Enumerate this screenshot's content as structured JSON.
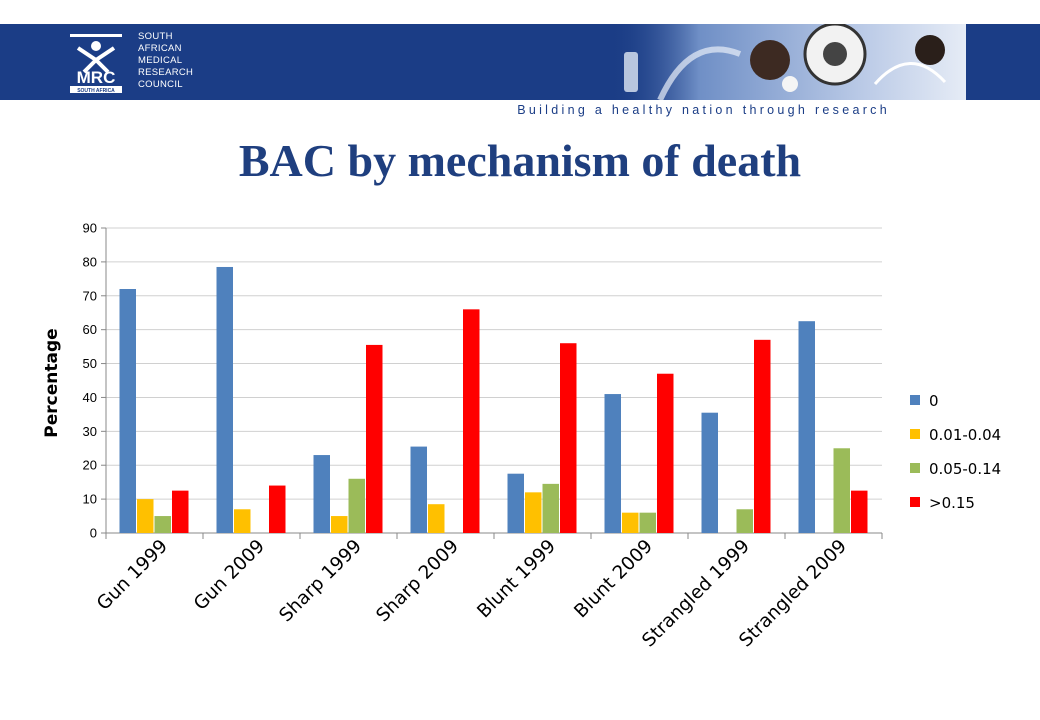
{
  "header": {
    "org_name_lines": [
      "SOUTH",
      "AFRICAN",
      "MEDICAL",
      "RESEARCH",
      "COUNCIL"
    ],
    "logo_text": "MRC",
    "logo_subtext": "SOUTH AFRICA",
    "tagline": "Building a healthy nation through research",
    "colors": {
      "banner": "#1b3d86",
      "tagline": "#1b3d86",
      "title": "#1f3f7f"
    }
  },
  "slide": {
    "title": "BAC by mechanism of death"
  },
  "chart_data": {
    "type": "bar",
    "title": "",
    "xlabel": "",
    "ylabel": "Percentage",
    "ylim": [
      0,
      90
    ],
    "yticks": [
      0,
      10,
      20,
      30,
      40,
      50,
      60,
      70,
      80,
      90
    ],
    "grid": true,
    "legend_position": "right",
    "categories": [
      "Gun 1999",
      "Gun 2009",
      "Sharp 1999",
      "Sharp 2009",
      "Blunt 1999",
      "Blunt 2009",
      "Strangled 1999",
      "Strangled 2009"
    ],
    "series": [
      {
        "name": "0",
        "color": "#4f81bd",
        "values": [
          72,
          78.5,
          23,
          25.5,
          17.5,
          41,
          35.5,
          62.5
        ]
      },
      {
        "name": "0.01-0.04",
        "color": "#ffc000",
        "values": [
          10,
          7,
          5,
          8.5,
          12,
          6,
          0,
          0
        ]
      },
      {
        "name": "0.05-0.14",
        "color": "#9bbb59",
        "values": [
          5,
          0,
          16,
          0,
          14.5,
          6,
          7,
          25
        ]
      },
      {
        "name": ">0.15",
        "color": "#ff0000",
        "values": [
          12.5,
          14,
          55.5,
          66,
          56,
          47,
          57,
          12.5
        ]
      }
    ]
  }
}
